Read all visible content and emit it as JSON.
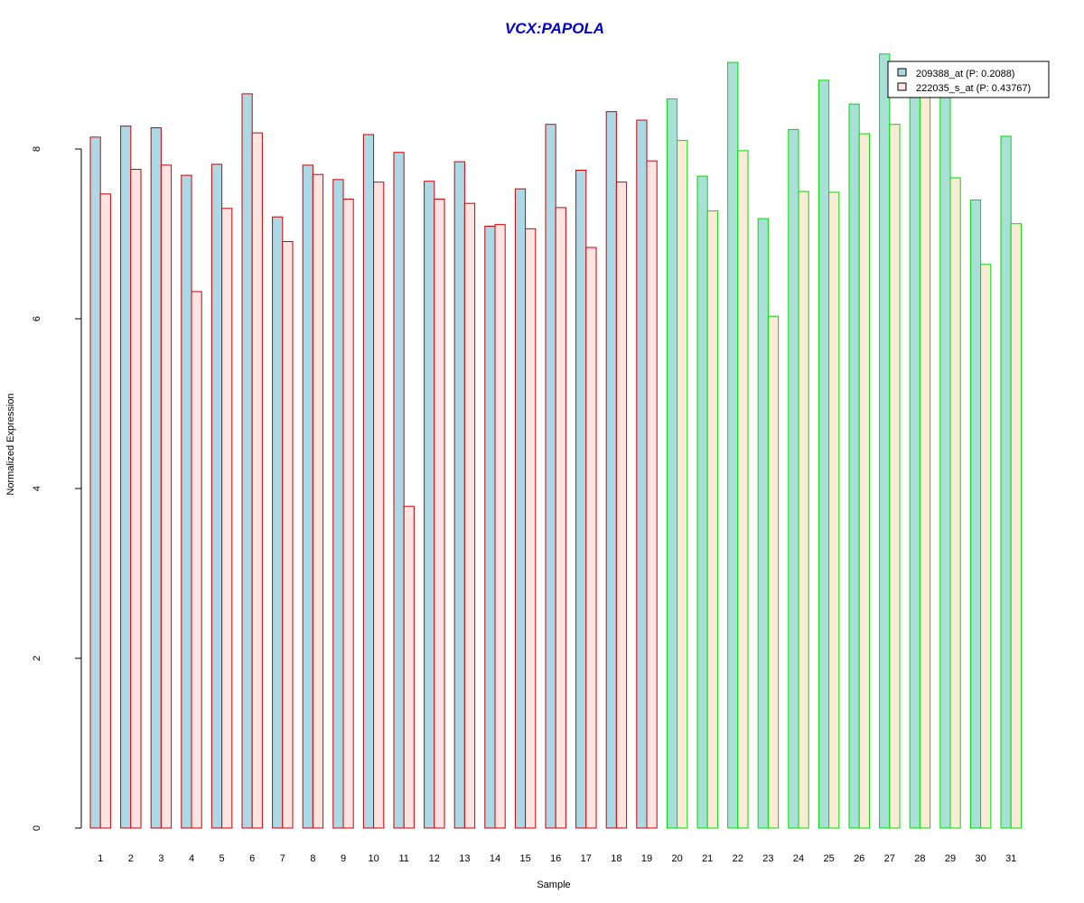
{
  "colors": {
    "title": "#0000CC",
    "series_a_fill": "#ADD8E6",
    "series_b_fill_group1": "#FFE4E1",
    "series_b_fill_group2": "#FAEBD7",
    "group1_border": "#CC0000",
    "group2_border": "#00DD00",
    "group2_series_a_fill": "#A8E0D8"
  },
  "chart_data": {
    "type": "bar",
    "title": "VCX:PAPOLA",
    "xlabel": "Sample",
    "ylabel": "Normalized Expression",
    "ylim": [
      0,
      9.2
    ],
    "yticks": [
      0,
      2,
      4,
      6,
      8
    ],
    "grid": false,
    "legend_position": "top-right",
    "categories": [
      "1",
      "2",
      "3",
      "4",
      "5",
      "6",
      "7",
      "8",
      "9",
      "10",
      "11",
      "12",
      "13",
      "14",
      "15",
      "16",
      "17",
      "18",
      "19",
      "20",
      "21",
      "22",
      "23",
      "24",
      "25",
      "26",
      "27",
      "28",
      "29",
      "30",
      "31"
    ],
    "groups": [
      {
        "samples": "1-19",
        "border": "red"
      },
      {
        "samples": "20-31",
        "border": "green"
      }
    ],
    "series": [
      {
        "name": "209388_at (P: 0.2088)",
        "values": [
          8.14,
          8.27,
          8.25,
          7.69,
          7.82,
          8.65,
          7.2,
          7.81,
          7.64,
          8.17,
          7.96,
          7.62,
          7.85,
          7.09,
          7.53,
          8.29,
          7.75,
          8.44,
          8.34,
          8.59,
          7.68,
          9.02,
          7.18,
          8.23,
          8.81,
          8.53,
          9.12,
          8.62,
          8.62,
          7.4,
          8.15
        ]
      },
      {
        "name": "222035_s_at (P: 0.43767)",
        "values": [
          7.47,
          7.76,
          7.81,
          6.32,
          7.3,
          8.19,
          6.91,
          7.7,
          7.41,
          7.61,
          3.79,
          7.41,
          7.36,
          7.11,
          7.06,
          7.31,
          6.84,
          7.61,
          7.86,
          8.1,
          7.27,
          7.98,
          6.03,
          7.5,
          7.49,
          8.18,
          8.29,
          8.62,
          7.66,
          6.64,
          7.12
        ]
      }
    ]
  }
}
